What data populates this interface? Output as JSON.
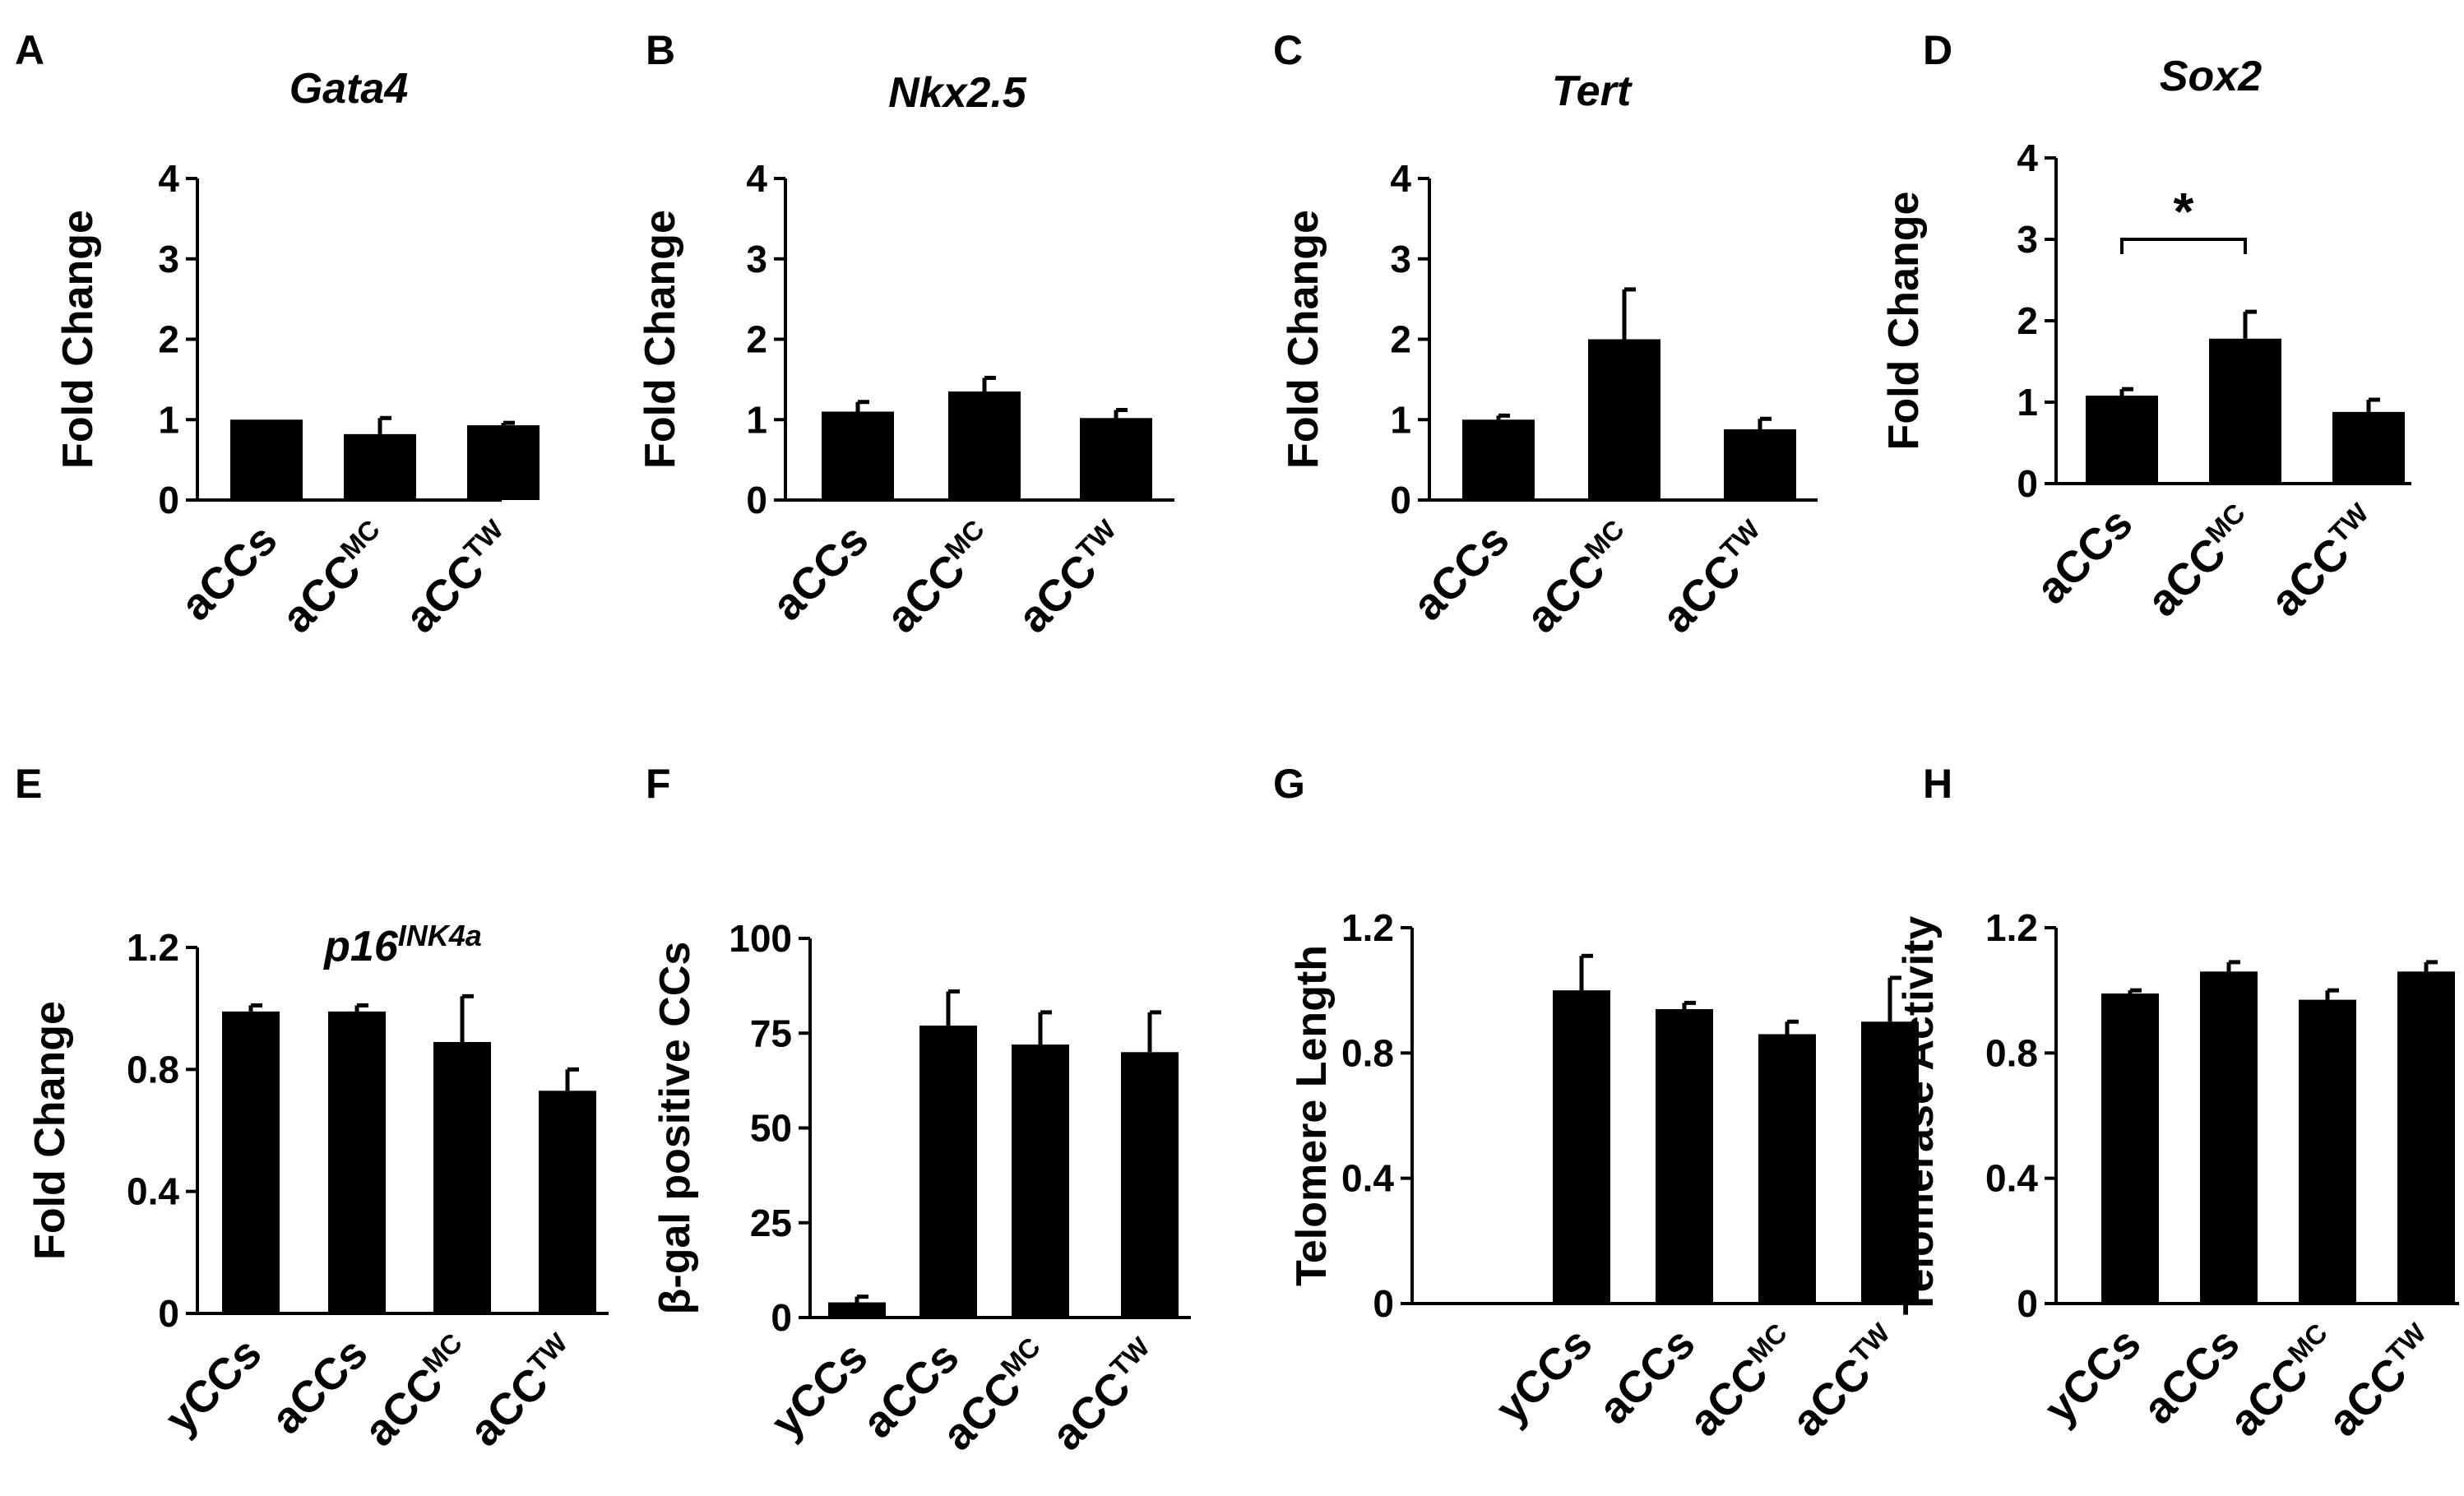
{
  "chart_data": [
    {
      "panel": "A",
      "type": "bar",
      "title": "Gata4",
      "title_sup": "",
      "ylabel": "Fold Change",
      "ylim": [
        0,
        4
      ],
      "yticks": [
        "0",
        "1",
        "2",
        "3",
        "4"
      ],
      "ytick_values": [
        0,
        1,
        2,
        3,
        4
      ],
      "categories": [
        {
          "base": "aCCs",
          "sup": ""
        },
        {
          "base": "aCC",
          "sup": "MC"
        },
        {
          "base": "aCC",
          "sup": "TW"
        }
      ],
      "values": [
        1.0,
        0.82,
        0.93
      ],
      "errors": [
        0.0,
        0.2,
        0.03
      ]
    },
    {
      "panel": "B",
      "type": "bar",
      "title": "Nkx2.5",
      "title_sup": "",
      "ylabel": "Fold Change",
      "ylim": [
        0,
        4
      ],
      "yticks": [
        "0",
        "1",
        "2",
        "3",
        "4"
      ],
      "ytick_values": [
        0,
        1,
        2,
        3,
        4
      ],
      "categories": [
        {
          "base": "aCCs",
          "sup": ""
        },
        {
          "base": "aCC",
          "sup": "MC"
        },
        {
          "base": "aCC",
          "sup": "TW"
        }
      ],
      "values": [
        1.1,
        1.35,
        1.02
      ],
      "errors": [
        0.12,
        0.17,
        0.1
      ]
    },
    {
      "panel": "C",
      "type": "bar",
      "title": "Tert",
      "title_sup": "",
      "ylabel": "Fold Change",
      "ylim": [
        0,
        4
      ],
      "yticks": [
        "0",
        "1",
        "2",
        "3",
        "4"
      ],
      "ytick_values": [
        0,
        1,
        2,
        3,
        4
      ],
      "categories": [
        {
          "base": "aCCs",
          "sup": ""
        },
        {
          "base": "aCC",
          "sup": "MC"
        },
        {
          "base": "aCC",
          "sup": "TW"
        }
      ],
      "values": [
        1.0,
        2.0,
        0.88
      ],
      "errors": [
        0.05,
        0.62,
        0.13
      ]
    },
    {
      "panel": "D",
      "type": "bar",
      "title": "Sox2",
      "title_sup": "",
      "ylabel": "Fold Change",
      "ylim": [
        0,
        4
      ],
      "yticks": [
        "0",
        "1",
        "2",
        "3",
        "4"
      ],
      "ytick_values": [
        0,
        1,
        2,
        3,
        4
      ],
      "categories": [
        {
          "base": "aCCs",
          "sup": ""
        },
        {
          "base": "aCC",
          "sup": "MC"
        },
        {
          "base": "aCC",
          "sup": "TW"
        }
      ],
      "values": [
        1.08,
        1.78,
        0.88
      ],
      "errors": [
        0.08,
        0.33,
        0.15
      ],
      "significance": {
        "from": 0,
        "to": 1,
        "label": "*"
      }
    },
    {
      "panel": "E",
      "type": "bar",
      "title": "p16",
      "title_sup": "INK4a",
      "ylabel": "Fold Change",
      "ylim": [
        0,
        1.2
      ],
      "yticks": [
        "0",
        "0.4",
        "0.8",
        "1.2"
      ],
      "ytick_values": [
        0,
        0.4,
        0.8,
        1.2
      ],
      "categories": [
        {
          "base": "yCCs",
          "sup": ""
        },
        {
          "base": "aCCs",
          "sup": ""
        },
        {
          "base": "aCC",
          "sup": "MC"
        },
        {
          "base": "aCC",
          "sup": "TW"
        }
      ],
      "values": [
        0.99,
        0.99,
        0.89,
        0.73
      ],
      "errors": [
        0.02,
        0.02,
        0.15,
        0.07
      ]
    },
    {
      "panel": "F",
      "type": "bar",
      "title": "",
      "title_sup": "",
      "ylabel": "β-gal positive CCs",
      "ylim": [
        0,
        100
      ],
      "yticks": [
        "0",
        "25",
        "50",
        "75",
        "100"
      ],
      "ytick_values": [
        0,
        25,
        50,
        75,
        100
      ],
      "categories": [
        {
          "base": "yCCs",
          "sup": ""
        },
        {
          "base": "aCCs",
          "sup": ""
        },
        {
          "base": "aCC",
          "sup": "MC"
        },
        {
          "base": "aCC",
          "sup": "TW"
        }
      ],
      "values": [
        4,
        77,
        72,
        70
      ],
      "errors": [
        1.5,
        9,
        8.5,
        10.5
      ]
    },
    {
      "panel": "G",
      "type": "bar",
      "title": "",
      "title_sup": "",
      "ylabel": "Telomere Length",
      "ylim": [
        0,
        1.2
      ],
      "yticks": [
        "0",
        "0.4",
        "0.8",
        "1.2"
      ],
      "ytick_values": [
        0,
        0.4,
        0.8,
        1.2
      ],
      "categories": [
        {
          "base": "yCCs",
          "sup": ""
        },
        {
          "base": "aCCs",
          "sup": ""
        },
        {
          "base": "aCC",
          "sup": "MC"
        },
        {
          "base": "aCC",
          "sup": "TW"
        }
      ],
      "values": [
        1.0,
        0.94,
        0.86,
        0.9
      ],
      "errors": [
        0.11,
        0.02,
        0.04,
        0.14
      ]
    },
    {
      "panel": "H",
      "type": "bar",
      "title": "",
      "title_sup": "",
      "ylabel": "Telomerase Activity",
      "ylim": [
        0,
        1.2
      ],
      "yticks": [
        "0",
        "0.4",
        "0.8",
        "1.2"
      ],
      "ytick_values": [
        0,
        0.4,
        0.8,
        1.2
      ],
      "categories": [
        {
          "base": "yCCs",
          "sup": ""
        },
        {
          "base": "aCCs",
          "sup": ""
        },
        {
          "base": "aCC",
          "sup": "MC"
        },
        {
          "base": "aCC",
          "sup": "TW"
        }
      ],
      "values": [
        0.99,
        1.06,
        0.97,
        1.06
      ],
      "errors": [
        0.01,
        0.03,
        0.03,
        0.03
      ]
    }
  ]
}
